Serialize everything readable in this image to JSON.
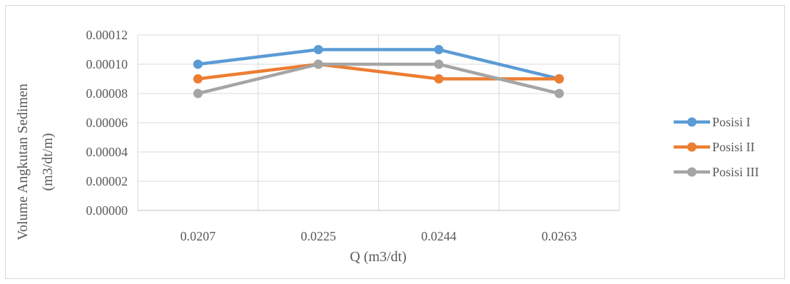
{
  "chart_data": {
    "type": "line",
    "title": "",
    "xlabel": "Q (m3/dt)",
    "ylabel": [
      "Volume Angkutan Sedimen",
      "(m3/dt/m)"
    ],
    "categories": [
      "0.0207",
      "0.0225",
      "0.0244",
      "0.0263"
    ],
    "ylim": [
      0,
      0.00012
    ],
    "yticks": [
      "0.00000",
      "0.00002",
      "0.00004",
      "0.00006",
      "0.00008",
      "0.00010",
      "0.00012"
    ],
    "grid": "vertical and horizontal",
    "legend_position": "right",
    "series": [
      {
        "name": "Posisi I",
        "color": "#5b9bd5",
        "values": [
          0.0001,
          0.00011,
          0.00011,
          9e-05
        ]
      },
      {
        "name": "Posisi II",
        "color": "#ed7d31",
        "values": [
          9e-05,
          0.0001,
          9e-05,
          9e-05
        ]
      },
      {
        "name": "Posisi III",
        "color": "#a5a5a5",
        "values": [
          8e-05,
          0.0001,
          0.0001,
          8e-05
        ]
      }
    ]
  }
}
